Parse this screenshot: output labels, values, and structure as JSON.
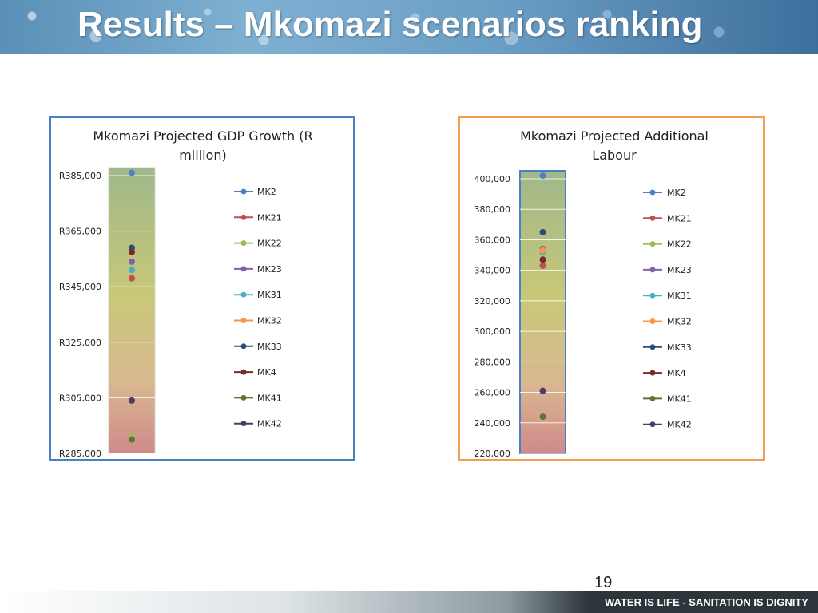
{
  "slide": {
    "title": "Results – Mkomazi scenarios ranking",
    "page_number": "19",
    "footer_tagline": "WATER IS LIFE - SANITATION IS DIGNITY"
  },
  "colors": {
    "MK2": "#4f81bd",
    "MK21": "#c0504d",
    "MK22": "#9bbb59",
    "MK23": "#8064a2",
    "MK31": "#4bacc6",
    "MK32": "#f79646",
    "MK33": "#2c4d75",
    "MK4": "#772c2a",
    "MK41": "#5f7530",
    "MK42": "#4d3b62",
    "box1_border": "#4a7fc1",
    "box2_border": "#f0a050"
  },
  "chart_data": [
    {
      "type": "scatter",
      "title": "Mkomazi Projected GDP Growth (R million)",
      "title_lines": [
        "Mkomazi Projected GDP Growth (R",
        "million)"
      ],
      "ylim": [
        285000,
        385000
      ],
      "yticks": [
        285000,
        305000,
        325000,
        345000,
        365000,
        385000
      ],
      "ytick_labels": [
        "R285,000",
        "R305,000",
        "R325,000",
        "R345,000",
        "R365,000",
        "R385,000"
      ],
      "grid": true,
      "legend": "right",
      "series": [
        {
          "name": "MK2",
          "y": 386000
        },
        {
          "name": "MK21",
          "y": 348000
        },
        {
          "name": "MK22",
          "y": 291000
        },
        {
          "name": "MK23",
          "y": 354000
        },
        {
          "name": "MK31",
          "y": 351000
        },
        {
          "name": "MK32",
          "y": 358000
        },
        {
          "name": "MK33",
          "y": 359000
        },
        {
          "name": "MK4",
          "y": 357500
        },
        {
          "name": "MK41",
          "y": 290000
        },
        {
          "name": "MK42",
          "y": 304000
        }
      ]
    },
    {
      "type": "scatter",
      "title": "Mkomazi Projected Additional Labour",
      "title_lines": [
        "Mkomazi Projected Additional",
        "Labour"
      ],
      "ylim": [
        220000,
        400000
      ],
      "yticks": [
        220000,
        240000,
        260000,
        280000,
        300000,
        320000,
        340000,
        360000,
        380000,
        400000
      ],
      "ytick_labels": [
        "220,000",
        "240,000",
        "260,000",
        "280,000",
        "300,000",
        "320,000",
        "340,000",
        "360,000",
        "380,000",
        "400,000"
      ],
      "grid": true,
      "legend": "right",
      "series": [
        {
          "name": "MK2",
          "y": 402000
        },
        {
          "name": "MK21",
          "y": 343000
        },
        {
          "name": "MK22",
          "y": 354000
        },
        {
          "name": "MK23",
          "y": 354000
        },
        {
          "name": "MK31",
          "y": 352000
        },
        {
          "name": "MK32",
          "y": 353000
        },
        {
          "name": "MK33",
          "y": 365000
        },
        {
          "name": "MK4",
          "y": 347000
        },
        {
          "name": "MK41",
          "y": 244000
        },
        {
          "name": "MK42",
          "y": 261000
        }
      ]
    }
  ]
}
